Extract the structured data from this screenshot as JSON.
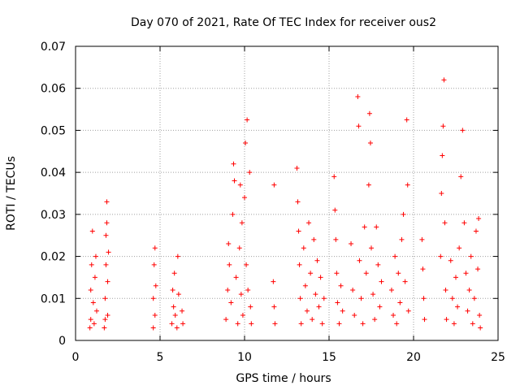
{
  "chart_data": {
    "type": "scatter",
    "title": "Day 070 of 2021, Rate Of TEC Index for receiver ous2",
    "xlabel": "GPS time / hours",
    "ylabel": "ROTI / TECUs",
    "xlim": [
      0,
      25
    ],
    "ylim": [
      0,
      0.07
    ],
    "x_ticks": [
      0,
      5,
      10,
      15,
      20,
      25
    ],
    "y_ticks": [
      0,
      0.01,
      0.02,
      0.03,
      0.04,
      0.05,
      0.06,
      0.07
    ],
    "x_tick_labels": [
      "0",
      "5",
      "10",
      "15",
      "20",
      "25"
    ],
    "y_tick_labels": [
      "0",
      "0.01",
      "0.02",
      "0.03",
      "0.04",
      "0.05",
      "0.06",
      "0.07"
    ],
    "grid": true,
    "marker": "+",
    "color": "#ff0000",
    "series": [
      {
        "points": [
          [
            0.9,
            0.005
          ],
          [
            0.9,
            0.012
          ],
          [
            0.95,
            0.018
          ],
          [
            1.0,
            0.026
          ],
          [
            1.05,
            0.009
          ],
          [
            1.1,
            0.004
          ],
          [
            1.15,
            0.015
          ],
          [
            1.2,
            0.02
          ],
          [
            1.25,
            0.007
          ],
          [
            0.85,
            0.003
          ],
          [
            1.75,
            0.005
          ],
          [
            1.75,
            0.01
          ],
          [
            1.8,
            0.018
          ],
          [
            1.8,
            0.025
          ],
          [
            1.85,
            0.033
          ],
          [
            1.85,
            0.028
          ],
          [
            1.9,
            0.006
          ],
          [
            1.9,
            0.014
          ],
          [
            1.95,
            0.021
          ],
          [
            1.7,
            0.003
          ],
          [
            4.6,
            0.003
          ],
          [
            4.6,
            0.01
          ],
          [
            4.65,
            0.018
          ],
          [
            4.7,
            0.022
          ],
          [
            4.7,
            0.006
          ],
          [
            4.75,
            0.013
          ],
          [
            5.7,
            0.004
          ],
          [
            5.75,
            0.012
          ],
          [
            5.8,
            0.008
          ],
          [
            5.85,
            0.016
          ],
          [
            5.9,
            0.006
          ],
          [
            6.0,
            0.003
          ],
          [
            6.05,
            0.02
          ],
          [
            6.1,
            0.011
          ],
          [
            6.3,
            0.007
          ],
          [
            6.35,
            0.004
          ],
          [
            8.9,
            0.005
          ],
          [
            9.0,
            0.012
          ],
          [
            9.05,
            0.023
          ],
          [
            9.1,
            0.018
          ],
          [
            9.2,
            0.009
          ],
          [
            9.3,
            0.03
          ],
          [
            9.35,
            0.042
          ],
          [
            9.4,
            0.038
          ],
          [
            9.5,
            0.015
          ],
          [
            9.6,
            0.004
          ],
          [
            9.7,
            0.022
          ],
          [
            9.75,
            0.037
          ],
          [
            9.8,
            0.011
          ],
          [
            9.85,
            0.028
          ],
          [
            9.9,
            0.006
          ],
          [
            10.0,
            0.034
          ],
          [
            10.05,
            0.047
          ],
          [
            10.1,
            0.018
          ],
          [
            10.15,
            0.0525
          ],
          [
            10.2,
            0.012
          ],
          [
            10.3,
            0.04
          ],
          [
            10.35,
            0.008
          ],
          [
            10.4,
            0.004
          ],
          [
            11.75,
            0.037
          ],
          [
            11.7,
            0.014
          ],
          [
            11.75,
            0.008
          ],
          [
            11.8,
            0.004
          ],
          [
            13.1,
            0.041
          ],
          [
            13.15,
            0.033
          ],
          [
            13.2,
            0.026
          ],
          [
            13.25,
            0.018
          ],
          [
            13.3,
            0.01
          ],
          [
            13.35,
            0.004
          ],
          [
            13.5,
            0.022
          ],
          [
            13.6,
            0.013
          ],
          [
            13.7,
            0.007
          ],
          [
            13.8,
            0.028
          ],
          [
            13.9,
            0.016
          ],
          [
            14.0,
            0.005
          ],
          [
            14.1,
            0.024
          ],
          [
            14.2,
            0.011
          ],
          [
            14.3,
            0.019
          ],
          [
            14.4,
            0.008
          ],
          [
            14.5,
            0.015
          ],
          [
            14.6,
            0.004
          ],
          [
            14.7,
            0.01
          ],
          [
            15.3,
            0.039
          ],
          [
            15.35,
            0.031
          ],
          [
            15.4,
            0.024
          ],
          [
            15.45,
            0.016
          ],
          [
            15.5,
            0.009
          ],
          [
            15.6,
            0.004
          ],
          [
            15.7,
            0.013
          ],
          [
            15.8,
            0.007
          ],
          [
            16.3,
            0.023
          ],
          [
            16.4,
            0.012
          ],
          [
            16.5,
            0.006
          ],
          [
            16.7,
            0.058
          ],
          [
            16.75,
            0.051
          ],
          [
            16.8,
            0.019
          ],
          [
            16.9,
            0.01
          ],
          [
            17.0,
            0.004
          ],
          [
            17.1,
            0.027
          ],
          [
            17.2,
            0.016
          ],
          [
            17.35,
            0.037
          ],
          [
            17.4,
            0.054
          ],
          [
            17.45,
            0.047
          ],
          [
            17.5,
            0.022
          ],
          [
            17.6,
            0.011
          ],
          [
            17.7,
            0.005
          ],
          [
            17.8,
            0.027
          ],
          [
            17.9,
            0.018
          ],
          [
            18.0,
            0.008
          ],
          [
            18.1,
            0.014
          ],
          [
            18.7,
            0.012
          ],
          [
            18.8,
            0.006
          ],
          [
            18.9,
            0.02
          ],
          [
            19.0,
            0.004
          ],
          [
            19.1,
            0.016
          ],
          [
            19.2,
            0.009
          ],
          [
            19.3,
            0.024
          ],
          [
            19.4,
            0.03
          ],
          [
            19.5,
            0.014
          ],
          [
            19.6,
            0.0525
          ],
          [
            19.65,
            0.037
          ],
          [
            19.7,
            0.007
          ],
          [
            20.5,
            0.024
          ],
          [
            20.55,
            0.017
          ],
          [
            20.6,
            0.01
          ],
          [
            20.65,
            0.005
          ],
          [
            21.6,
            0.02
          ],
          [
            21.65,
            0.035
          ],
          [
            21.7,
            0.044
          ],
          [
            21.75,
            0.051
          ],
          [
            21.8,
            0.062
          ],
          [
            21.85,
            0.028
          ],
          [
            21.9,
            0.012
          ],
          [
            21.95,
            0.005
          ],
          [
            22.2,
            0.019
          ],
          [
            22.3,
            0.01
          ],
          [
            22.4,
            0.004
          ],
          [
            22.5,
            0.015
          ],
          [
            22.6,
            0.008
          ],
          [
            22.7,
            0.022
          ],
          [
            22.8,
            0.039
          ],
          [
            22.9,
            0.05
          ],
          [
            23.0,
            0.028
          ],
          [
            23.1,
            0.016
          ],
          [
            23.2,
            0.007
          ],
          [
            23.3,
            0.012
          ],
          [
            23.4,
            0.02
          ],
          [
            23.5,
            0.004
          ],
          [
            23.6,
            0.01
          ],
          [
            23.7,
            0.026
          ],
          [
            23.8,
            0.017
          ],
          [
            23.85,
            0.029
          ],
          [
            23.9,
            0.006
          ],
          [
            23.95,
            0.003
          ]
        ]
      }
    ]
  }
}
